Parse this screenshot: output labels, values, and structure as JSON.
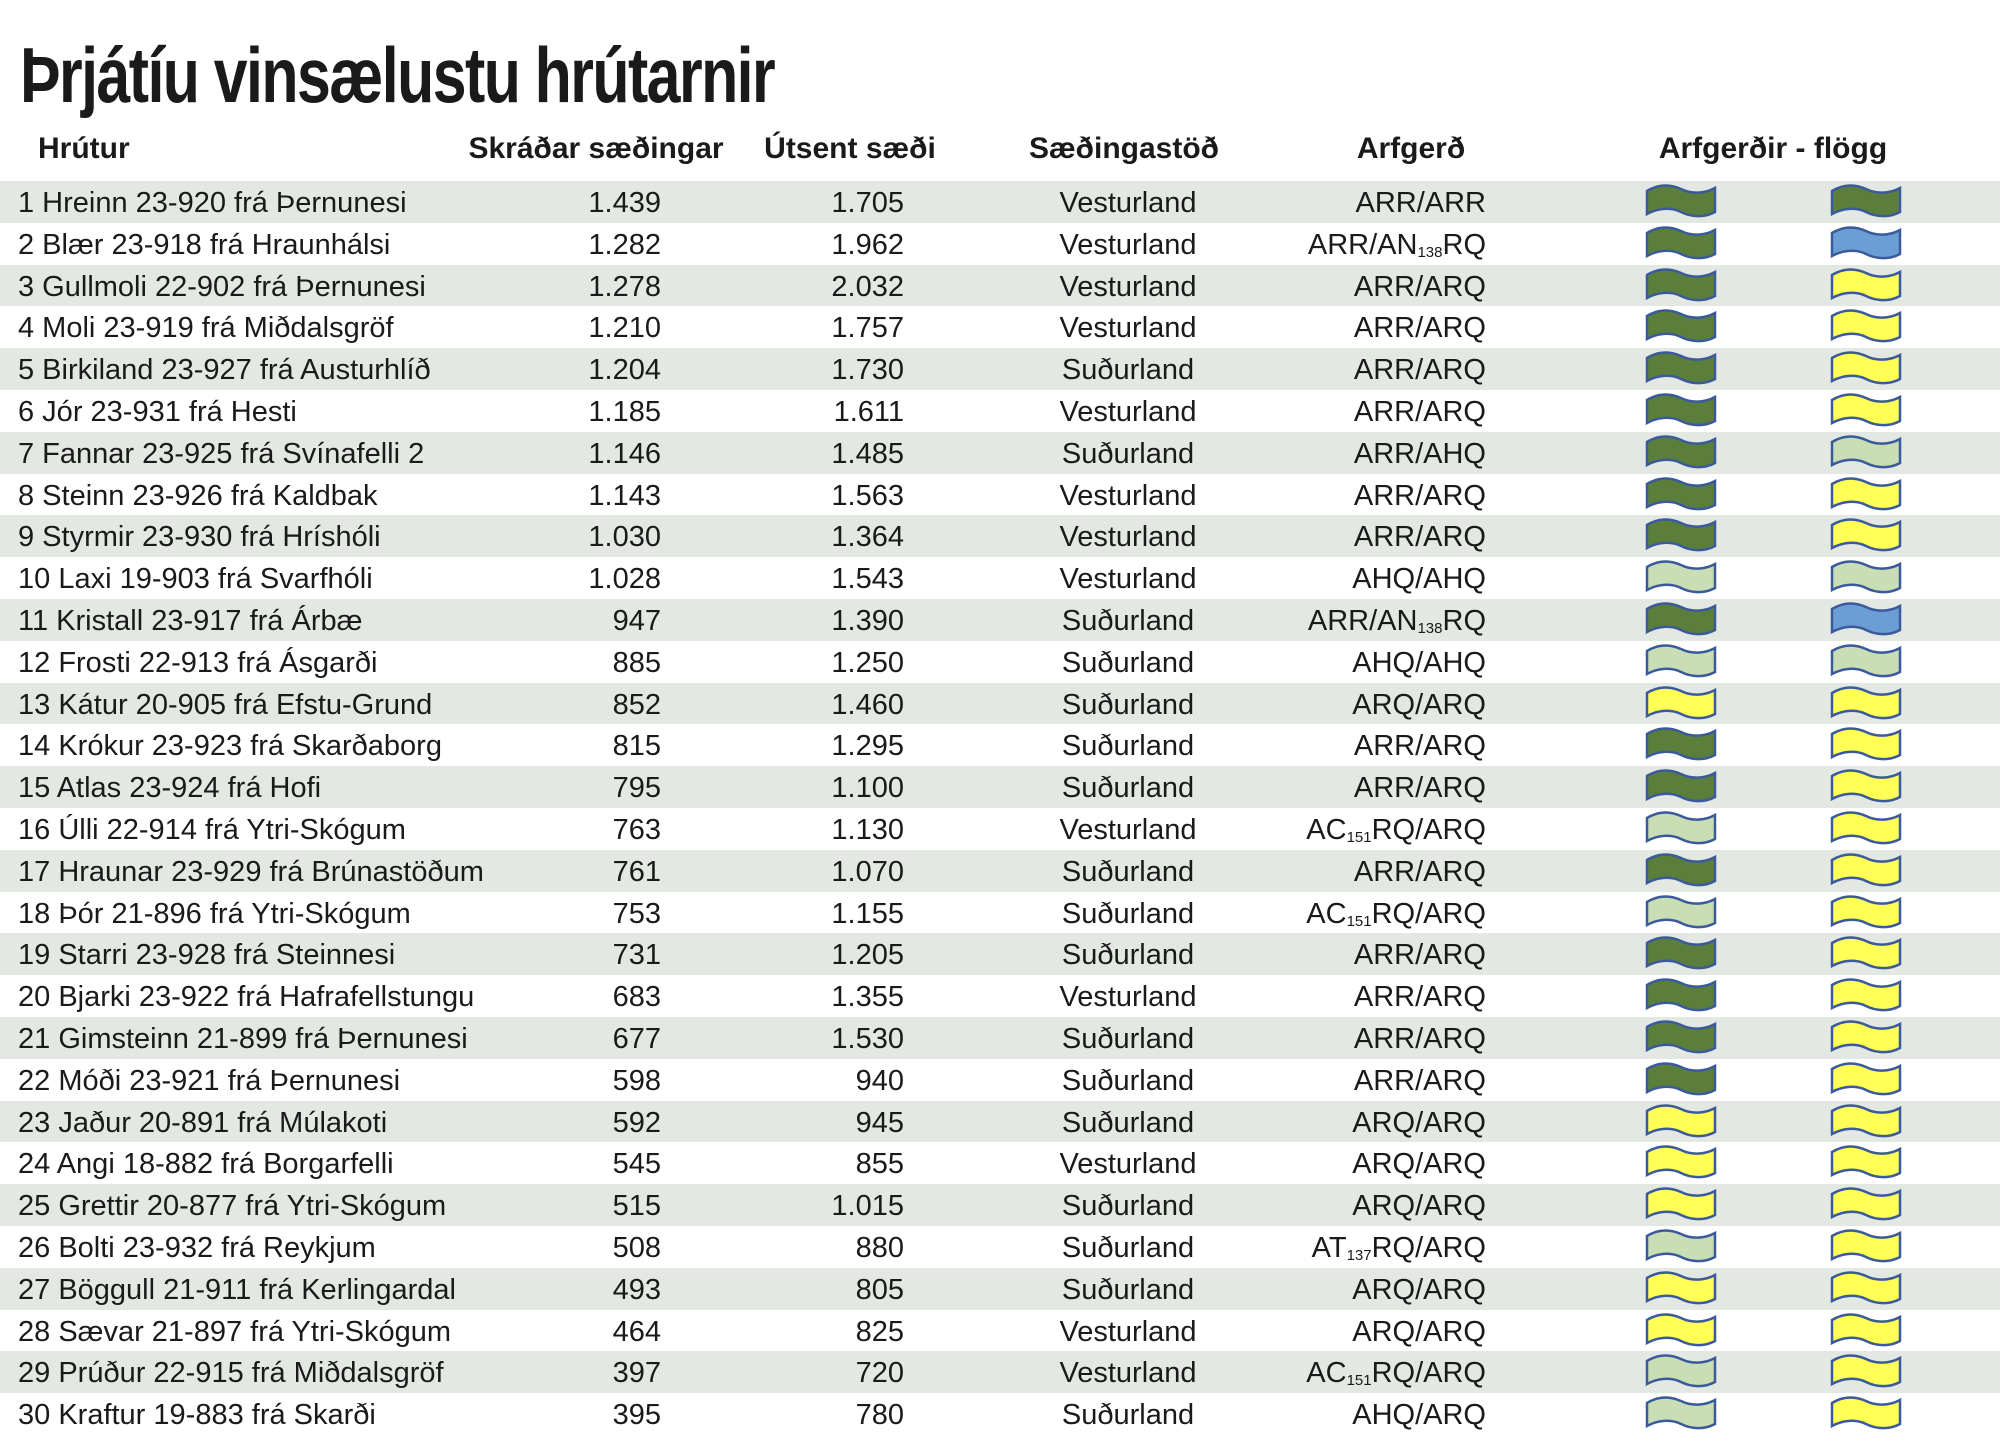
{
  "title": "Þrjátíu vinsælustu hrútarnir",
  "headers": {
    "ram": "Hrútur",
    "registered": "Skráðar sæðingar",
    "sent": "Útsent sæði",
    "station": "Sæðingastöð",
    "genotype": "Arfgerð",
    "flags": "Arfgerðir - flögg"
  },
  "flag_colors": {
    "ARR": "#5b7f3a",
    "AN138RQ": "#6b9ed4",
    "ARQ": "#ffff55",
    "AHQ": "#c9deb5",
    "AC151RQ": "#c9deb5",
    "AT137RQ": "#c9deb5",
    "outline": "#3b5a9c",
    "stripe": "#e3e8e3"
  },
  "rows": [
    {
      "name": "1 Hreinn 23-920 frá Þernunesi",
      "registered": "1.439",
      "sent": "1.705",
      "station": "Vesturland",
      "genotype": "ARR/ARR"
    },
    {
      "name": "2 Blær 23-918 frá Hraunhálsi",
      "registered": "1.282",
      "sent": "1.962",
      "station": "Vesturland",
      "genotype": "ARR/AN138RQ"
    },
    {
      "name": "3 Gullmoli 22-902 frá Þernunesi",
      "registered": "1.278",
      "sent": "2.032",
      "station": "Vesturland",
      "genotype": "ARR/ARQ"
    },
    {
      "name": "4 Moli 23-919 frá Miðdalsgröf",
      "registered": "1.210",
      "sent": "1.757",
      "station": "Vesturland",
      "genotype": "ARR/ARQ"
    },
    {
      "name": "5 Birkiland 23-927 frá Austurhlíð",
      "registered": "1.204",
      "sent": "1.730",
      "station": "Suðurland",
      "genotype": "ARR/ARQ"
    },
    {
      "name": "6 Jór 23-931 frá Hesti",
      "registered": "1.185",
      "sent": "1.611",
      "station": "Vesturland",
      "genotype": "ARR/ARQ"
    },
    {
      "name": "7 Fannar 23-925 frá Svínafelli 2",
      "registered": "1.146",
      "sent": "1.485",
      "station": "Suðurland",
      "genotype": "ARR/AHQ"
    },
    {
      "name": "8 Steinn 23-926 frá Kaldbak",
      "registered": "1.143",
      "sent": "1.563",
      "station": "Vesturland",
      "genotype": "ARR/ARQ"
    },
    {
      "name": "9 Styrmir 23-930 frá Hríshóli",
      "registered": "1.030",
      "sent": "1.364",
      "station": "Vesturland",
      "genotype": "ARR/ARQ"
    },
    {
      "name": "10 Laxi 19-903 frá Svarfhóli",
      "registered": "1.028",
      "sent": "1.543",
      "station": "Vesturland",
      "genotype": "AHQ/AHQ"
    },
    {
      "name": "11 Kristall 23-917 frá Árbæ",
      "registered": "947",
      "sent": "1.390",
      "station": "Suðurland",
      "genotype": "ARR/AN138RQ"
    },
    {
      "name": "12 Frosti 22-913 frá Ásgarði",
      "registered": "885",
      "sent": "1.250",
      "station": "Suðurland",
      "genotype": "AHQ/AHQ"
    },
    {
      "name": "13 Kátur 20-905 frá Efstu-Grund",
      "registered": "852",
      "sent": "1.460",
      "station": "Suðurland",
      "genotype": "ARQ/ARQ"
    },
    {
      "name": "14 Krókur 23-923 frá Skarðaborg",
      "registered": "815",
      "sent": "1.295",
      "station": "Suðurland",
      "genotype": "ARR/ARQ"
    },
    {
      "name": "15 Atlas 23-924 frá Hofi",
      "registered": "795",
      "sent": "1.100",
      "station": "Suðurland",
      "genotype": "ARR/ARQ"
    },
    {
      "name": "16 Úlli 22-914 frá Ytri-Skógum",
      "registered": "763",
      "sent": "1.130",
      "station": "Vesturland",
      "genotype": "AC151RQ/ARQ"
    },
    {
      "name": "17 Hraunar 23-929 frá Brúnastöðum",
      "registered": "761",
      "sent": "1.070",
      "station": "Suðurland",
      "genotype": "ARR/ARQ"
    },
    {
      "name": "18 Þór 21-896 frá Ytri-Skógum",
      "registered": "753",
      "sent": "1.155",
      "station": "Suðurland",
      "genotype": "AC151RQ/ARQ"
    },
    {
      "name": "19 Starri 23-928 frá Steinnesi",
      "registered": "731",
      "sent": "1.205",
      "station": "Suðurland",
      "genotype": "ARR/ARQ"
    },
    {
      "name": "20 Bjarki 23-922 frá Hafrafellstungu",
      "registered": "683",
      "sent": "1.355",
      "station": "Vesturland",
      "genotype": "ARR/ARQ"
    },
    {
      "name": "21 Gimsteinn 21-899 frá Þernunesi",
      "registered": "677",
      "sent": "1.530",
      "station": "Suðurland",
      "genotype": "ARR/ARQ"
    },
    {
      "name": "22 Móði 23-921 frá Þernunesi",
      "registered": "598",
      "sent": "940",
      "station": "Suðurland",
      "genotype": "ARR/ARQ"
    },
    {
      "name": "23 Jaður 20-891 frá Múlakoti",
      "registered": "592",
      "sent": "945",
      "station": "Suðurland",
      "genotype": "ARQ/ARQ"
    },
    {
      "name": "24 Angi 18-882 frá Borgarfelli",
      "registered": "545",
      "sent": "855",
      "station": "Vesturland",
      "genotype": "ARQ/ARQ"
    },
    {
      "name": "25 Grettir 20-877 frá Ytri-Skógum",
      "registered": "515",
      "sent": "1.015",
      "station": "Suðurland",
      "genotype": "ARQ/ARQ"
    },
    {
      "name": "26 Bolti 23-932 frá Reykjum",
      "registered": "508",
      "sent": "880",
      "station": "Suðurland",
      "genotype": "AT137RQ/ARQ"
    },
    {
      "name": "27 Böggull 21-911 frá Kerlingardal",
      "registered": "493",
      "sent": "805",
      "station": "Suðurland",
      "genotype": "ARQ/ARQ"
    },
    {
      "name": "28 Sævar 21-897 frá Ytri-Skógum",
      "registered": "464",
      "sent": "825",
      "station": "Vesturland",
      "genotype": "ARQ/ARQ"
    },
    {
      "name": "29 Prúður 22-915 frá Miðdalsgröf",
      "registered": "397",
      "sent": "720",
      "station": "Vesturland",
      "genotype": "AC151RQ/ARQ"
    },
    {
      "name": "30 Kraftur 19-883 frá Skarði",
      "registered": "395",
      "sent": "780",
      "station": "Suðurland",
      "genotype": "AHQ/ARQ"
    }
  ]
}
